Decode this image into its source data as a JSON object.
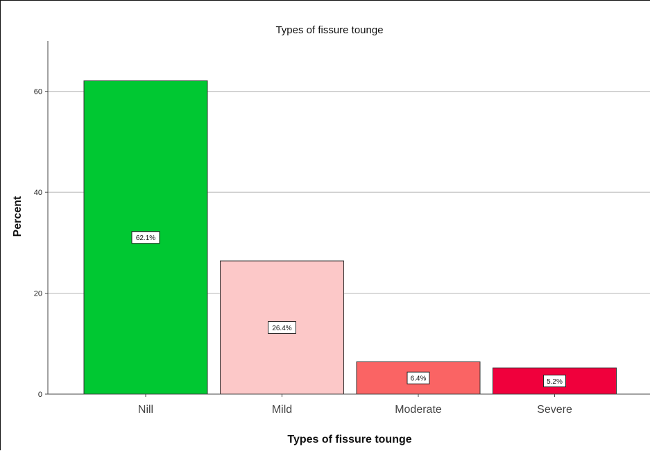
{
  "chart_data": {
    "type": "bar",
    "title": "Types of fissure tounge",
    "xlabel": "Types of fissure tounge",
    "ylabel": "Percent",
    "categories": [
      "Nill",
      "Mild",
      "Moderate",
      "Severe"
    ],
    "values": [
      62.1,
      26.4,
      6.4,
      5.2
    ],
    "data_labels": [
      "62.1%",
      "26.4%",
      "6.4%",
      "5.2%"
    ],
    "colors": [
      "#00c832",
      "#fcc8c8",
      "#fa6464",
      "#f0003c"
    ],
    "ylim": [
      0,
      70
    ],
    "yticks": [
      0,
      20,
      40,
      60
    ],
    "grid": true,
    "legend": "none"
  }
}
